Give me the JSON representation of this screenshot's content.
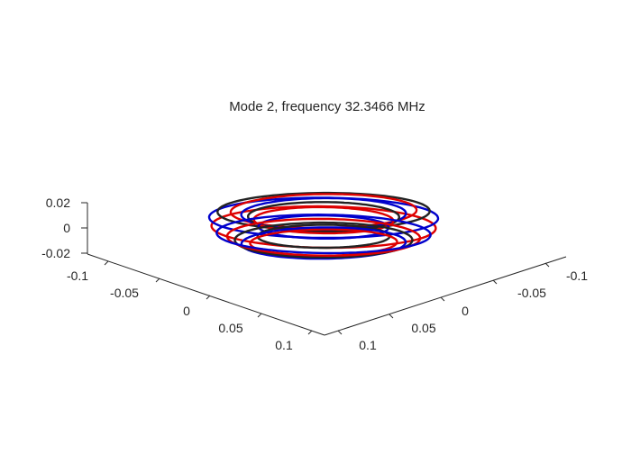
{
  "figure": {
    "title": "Mode 2, frequency 32.3466 MHz",
    "background": "#ffffff",
    "axis_color": "#262626"
  },
  "chart_data": {
    "type": "line3d",
    "title": "Mode 2, frequency 32.3466 MHz",
    "view": "3-D axes, no grid, default isometric-like view",
    "axes": {
      "x": {
        "ticks": [
          -0.1,
          -0.05,
          0,
          0.05,
          0.1
        ],
        "tick_labels": [
          "-0.1",
          "-0.05",
          "0",
          "0.05",
          "0.1"
        ],
        "range": [
          -0.11,
          0.11
        ]
      },
      "y": {
        "ticks": [
          -0.1,
          -0.05,
          0,
          0.05,
          0.1
        ],
        "tick_labels": [
          "-0.1",
          "-0.05",
          "0",
          "0.05",
          "0.1"
        ],
        "range": [
          -0.11,
          0.11
        ]
      },
      "z": {
        "ticks": [
          -0.02,
          0,
          0.02
        ],
        "tick_labels": [
          "-0.02",
          "0",
          "0.02"
        ],
        "range": [
          -0.022,
          0.022
        ]
      }
    },
    "torus": {
      "major_radius": 0.075,
      "minor_radius": 0.018
    },
    "series": [
      {
        "color": "#dd0000",
        "group": "red rings"
      },
      {
        "color": "#0000cc",
        "group": "blue rings"
      },
      {
        "color": "#222222",
        "group": "dark rings"
      }
    ]
  }
}
